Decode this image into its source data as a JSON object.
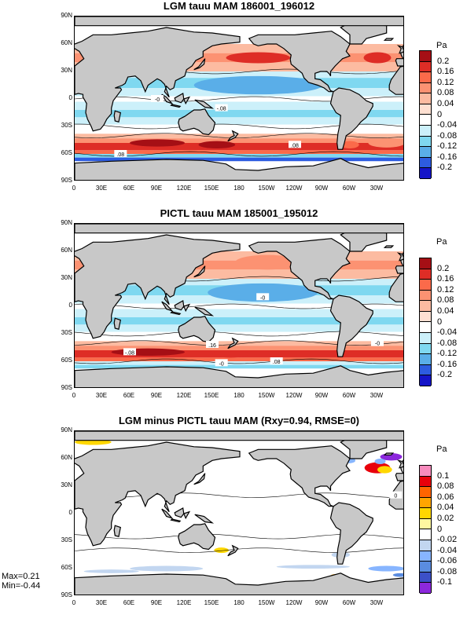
{
  "units": "Pa",
  "x_ticks": [
    "0",
    "30E",
    "60E",
    "90E",
    "120E",
    "150E",
    "180",
    "150W",
    "120W",
    "90W",
    "60W",
    "30W"
  ],
  "y_ticks": [
    "90N",
    "60N",
    "30N",
    "0",
    "30S",
    "60S",
    "90S"
  ],
  "panels": [
    {
      "title": "LGM tauu MAM 186001_196012",
      "contour_labels": [
        "-0",
        ".08",
        "-.08",
        ".08"
      ],
      "colorbar": {
        "labels": [
          "0.2",
          "0.16",
          "0.12",
          "0.08",
          "0.04",
          "0",
          "-0.04",
          "-0.08",
          "-0.12",
          "-0.16",
          "-0.2"
        ],
        "colors": [
          "#a50f15",
          "#de2d26",
          "#fb6a4a",
          "#fc9272",
          "#fcbba1",
          "#fee0d2",
          "#ffffff",
          "#ccf0fa",
          "#7fd8f0",
          "#5aaee8",
          "#2d5ce0",
          "#1414c8"
        ]
      }
    },
    {
      "title": "PICTL tauu MAM 185001_195012",
      "contour_labels": [
        "-0",
        "-.08",
        ".16",
        "-0",
        ".08",
        "-0"
      ],
      "colorbar": {
        "labels": [
          "0.2",
          "0.16",
          "0.12",
          "0.08",
          "0.04",
          "0",
          "-0.04",
          "-0.08",
          "-0.12",
          "-0.16",
          "-0.2"
        ],
        "colors": [
          "#a50f15",
          "#de2d26",
          "#fb6a4a",
          "#fc9272",
          "#fcbba1",
          "#fee0d2",
          "#ffffff",
          "#ccf0fa",
          "#7fd8f0",
          "#5aaee8",
          "#2d5ce0",
          "#1414c8"
        ]
      }
    },
    {
      "title": "LGM minus PICTL tauu MAM (Rxy=0.94, RMSE=0)",
      "contour_labels": [
        "0"
      ],
      "stats": [
        "Max=0.21",
        "Min=-0.44"
      ],
      "colorbar": {
        "labels": [
          "0.1",
          "0.08",
          "0.06",
          "0.04",
          "0.02",
          "0",
          "-0.02",
          "-0.04",
          "-0.06",
          "-0.08",
          "-0.1"
        ],
        "colors": [
          "#f78bbd",
          "#e8000b",
          "#ff6400",
          "#ffa500",
          "#ffd700",
          "#fff8a0",
          "#ffffff",
          "#c2d6f0",
          "#87b5ff",
          "#5a8ce0",
          "#3c50c8",
          "#8c28dc"
        ]
      }
    }
  ],
  "chart_data": [
    {
      "type": "heatmap",
      "title": "LGM tauu MAM 186001_196012",
      "units": "Pa",
      "xlim": [
        0,
        360
      ],
      "ylim": [
        -90,
        90
      ],
      "zonal_bands": [
        {
          "lat": 45,
          "value": 0.12
        },
        {
          "lat": 15,
          "value": -0.08
        },
        {
          "lat": -15,
          "value": -0.06
        },
        {
          "lat": -50,
          "value": 0.16
        },
        {
          "lat": -65,
          "value": -0.08
        }
      ]
    },
    {
      "type": "heatmap",
      "title": "PICTL tauu MAM 185001_195012",
      "units": "Pa",
      "xlim": [
        0,
        360
      ],
      "ylim": [
        -90,
        90
      ],
      "zonal_bands": [
        {
          "lat": 45,
          "value": 0.12
        },
        {
          "lat": 15,
          "value": -0.08
        },
        {
          "lat": -15,
          "value": -0.06
        },
        {
          "lat": -50,
          "value": 0.16
        },
        {
          "lat": -65,
          "value": -0.08
        }
      ]
    },
    {
      "type": "heatmap",
      "title": "LGM minus PICTL tauu MAM (Rxy=0.94, RMSE=0)",
      "units": "Pa",
      "xlim": [
        0,
        360
      ],
      "ylim": [
        -90,
        90
      ],
      "max": 0.21,
      "min": -0.44,
      "rxy": 0.94,
      "rmse": 0
    }
  ]
}
